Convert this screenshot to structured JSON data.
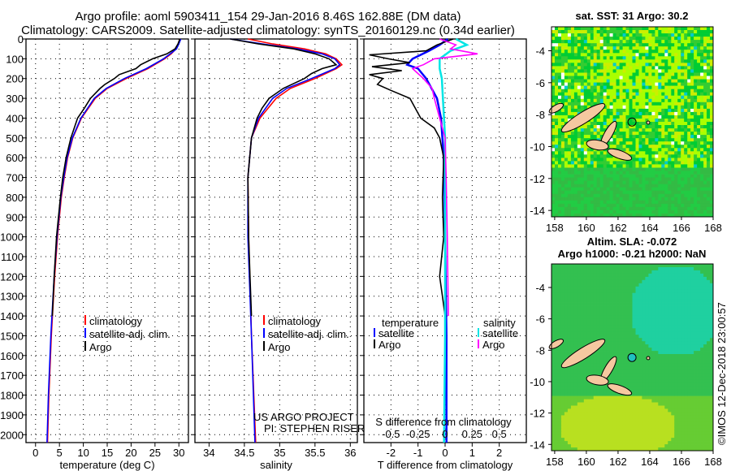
{
  "title": {
    "line1": "Argo profile: aoml 5903411_154 29-Jan-2016 8.46S 162.88E (DM data)",
    "line2": "Climatology: CARS2009. Satellite-adjusted climatology: synTS_20160129.nc (0.34d earlier)"
  },
  "credit": {
    "project": "US ARGO PROJECT",
    "pi": "PI: STEPHEN RISER",
    "stamp": "©IMOS 12-Dec-2018 23:00:57"
  },
  "colors": {
    "climatology": "#ff0000",
    "satellite": "#0000ff",
    "argo": "#000000",
    "sal_satellite": "#00e5e5",
    "sal_argo": "#ff00ff"
  },
  "chart_data": [
    {
      "type": "line",
      "name": "temperature",
      "xlabel": "temperature (deg C)",
      "ylabel": "depth",
      "xlim": [
        -2,
        32
      ],
      "ylim": [
        2040,
        0
      ],
      "xticks": [
        0,
        5,
        10,
        15,
        20,
        25,
        30
      ],
      "yticks": [
        0,
        100,
        200,
        300,
        400,
        500,
        600,
        700,
        800,
        900,
        1000,
        1100,
        1200,
        1300,
        1400,
        1500,
        1600,
        1700,
        1800,
        1900,
        2000
      ],
      "legend": [
        "climatology",
        "satellite-adj. clim.",
        "Argo"
      ],
      "series": [
        {
          "name": "climatology",
          "color": "#ff0000",
          "depth": [
            0,
            25,
            50,
            75,
            100,
            150,
            200,
            250,
            300,
            400,
            500,
            600,
            700,
            800,
            1000,
            1200,
            1500,
            1800,
            2040
          ],
          "values": [
            30.2,
            29.9,
            29.4,
            28.4,
            27,
            23.5,
            19,
            15,
            12.5,
            9.6,
            7.8,
            6.7,
            6,
            5.4,
            4.6,
            4,
            3.3,
            2.8,
            2.5
          ]
        },
        {
          "name": "satellite-adj. clim.",
          "color": "#0000ff",
          "depth": [
            0,
            25,
            50,
            75,
            100,
            150,
            200,
            250,
            300,
            400,
            500,
            600,
            700,
            800,
            1000,
            1200,
            1500,
            1800,
            2040
          ],
          "values": [
            30.4,
            30,
            29.5,
            28.2,
            26.8,
            23.2,
            18.6,
            14.8,
            12.3,
            9.5,
            7.7,
            6.6,
            5.9,
            5.3,
            4.5,
            3.9,
            3.2,
            2.7,
            2.4
          ]
        },
        {
          "name": "Argo",
          "color": "#000000",
          "depth": [
            0,
            25,
            50,
            75,
            100,
            130,
            150,
            180,
            200,
            230,
            250,
            300,
            350,
            400,
            500,
            600,
            700,
            800,
            1000,
            1200,
            1400
          ],
          "values": [
            30.2,
            29.8,
            29.2,
            27.5,
            24.5,
            22,
            21,
            17.5,
            16.5,
            14.5,
            13.5,
            11.5,
            10.2,
            8.8,
            7.4,
            6.4,
            5.7,
            5.2,
            4.4,
            3.9,
            3.5
          ]
        }
      ]
    },
    {
      "type": "line",
      "name": "salinity",
      "xlabel": "salinity",
      "xlim": [
        33.8,
        36.1
      ],
      "ylim": [
        2040,
        0
      ],
      "xticks": [
        34,
        34.5,
        35,
        35.5,
        36
      ],
      "legend": [
        "climatology",
        "satellite-adj. clim.",
        "Argo"
      ],
      "series": [
        {
          "name": "climatology",
          "color": "#ff0000",
          "depth": [
            0,
            25,
            50,
            75,
            100,
            130,
            150,
            200,
            250,
            300,
            400,
            500,
            700,
            1000,
            1500,
            2040
          ],
          "values": [
            34.55,
            34.9,
            35.35,
            35.65,
            35.8,
            35.88,
            35.8,
            35.5,
            35.15,
            34.95,
            34.72,
            34.6,
            34.55,
            34.56,
            34.6,
            34.66
          ]
        },
        {
          "name": "satellite-adj. clim.",
          "color": "#0000ff",
          "depth": [
            0,
            25,
            50,
            75,
            100,
            130,
            150,
            200,
            250,
            300,
            400,
            500,
            700,
            1000,
            1500,
            2040
          ],
          "values": [
            34.3,
            34.75,
            35.25,
            35.6,
            35.78,
            35.85,
            35.78,
            35.45,
            35.1,
            34.9,
            34.7,
            34.6,
            34.55,
            34.55,
            34.6,
            34.65
          ]
        },
        {
          "name": "Argo",
          "color": "#000000",
          "depth": [
            0,
            25,
            50,
            75,
            100,
            130,
            150,
            175,
            200,
            250,
            300,
            350,
            400,
            500,
            700,
            1000,
            1200,
            1400
          ],
          "values": [
            34.3,
            34.7,
            35.2,
            35.5,
            35.7,
            35.8,
            35.6,
            35.45,
            35.35,
            35.05,
            34.85,
            34.75,
            34.68,
            34.6,
            34.55,
            34.56,
            34.58,
            34.6
          ]
        }
      ]
    },
    {
      "type": "line",
      "name": "difference",
      "xlabel": "T difference from climatology",
      "xlabel2": "S difference from climatology",
      "xlim": [
        -3,
        3
      ],
      "ylim": [
        2040,
        0
      ],
      "xticks": [
        -2,
        -1,
        0,
        1,
        2
      ],
      "xticks2": [
        -0.5,
        -0.25,
        0,
        0.25,
        0.5
      ],
      "legend_t": [
        "temperature",
        "satellite",
        "Argo"
      ],
      "legend_s": [
        "salinity",
        "satellite",
        "Argo"
      ],
      "series": [
        {
          "name": "T satellite",
          "color": "#0000ff",
          "unit": "T",
          "depth": [
            0,
            30,
            60,
            100,
            130,
            150,
            200,
            300,
            400,
            600,
            1000,
            1500,
            2040
          ],
          "values": [
            0.1,
            -0.2,
            -0.6,
            -1.2,
            -1.4,
            -1.0,
            -0.7,
            -0.3,
            -0.15,
            -0.05,
            0,
            0.05,
            0.05
          ]
        },
        {
          "name": "T Argo",
          "color": "#000000",
          "unit": "T",
          "depth": [
            0,
            30,
            60,
            80,
            100,
            120,
            140,
            160,
            180,
            200,
            230,
            260,
            300,
            350,
            400,
            450,
            500,
            600,
            800,
            1000,
            1200,
            1300,
            1400
          ],
          "values": [
            0.3,
            -0.3,
            -0.7,
            -2.8,
            -2.1,
            -1.3,
            -2.7,
            -1.6,
            -2.8,
            -2.3,
            -2.5,
            -2.0,
            -1.3,
            -1.1,
            -0.9,
            -0.4,
            -0.2,
            -0.05,
            -0.1,
            -0.05,
            -0.2,
            -0.1,
            0
          ]
        },
        {
          "name": "S satellite",
          "color": "#00e5e5",
          "unit": "S",
          "depth": [
            0,
            30,
            60,
            100,
            150,
            200,
            300,
            500,
            1000,
            1500,
            2040
          ],
          "values": [
            0.1,
            0.2,
            0.05,
            -0.05,
            -0.05,
            -0.03,
            -0.02,
            0,
            0,
            0,
            -0.01
          ]
        },
        {
          "name": "S Argo",
          "color": "#ff00ff",
          "unit": "S",
          "depth": [
            0,
            30,
            50,
            75,
            100,
            130,
            150,
            200,
            250,
            300,
            400,
            500,
            700,
            1000,
            1400
          ],
          "values": [
            -0.05,
            0.1,
            0.05,
            0.3,
            -0.1,
            -0.2,
            -0.3,
            -0.2,
            -0.12,
            -0.1,
            -0.05,
            0,
            0.01,
            0.02,
            0.03
          ]
        }
      ]
    },
    {
      "type": "heatmap",
      "name": "sst_map",
      "title": "sat. SST: 31 Argo: 30.2",
      "xticks": [
        158,
        160,
        162,
        164,
        166,
        168
      ],
      "yticks": [
        -4,
        -6,
        -8,
        -10,
        -12,
        -14
      ],
      "xlim": [
        157.8,
        168
      ],
      "ylim": [
        -14.4,
        -2.5
      ],
      "argo_position": [
        162.88,
        -8.46
      ]
    },
    {
      "type": "heatmap",
      "name": "sla_map",
      "title": "Altim. SLA: -0.072",
      "subtitle": "Argo h1000: -0.21 h2000: NaN",
      "xticks": [
        158,
        160,
        162,
        164,
        166,
        168
      ],
      "yticks": [
        -4,
        -6,
        -8,
        -10,
        -12,
        -14
      ],
      "xlim": [
        157.8,
        168
      ],
      "ylim": [
        -14.4,
        -2.5
      ],
      "argo_position": [
        162.88,
        -8.46
      ]
    }
  ]
}
